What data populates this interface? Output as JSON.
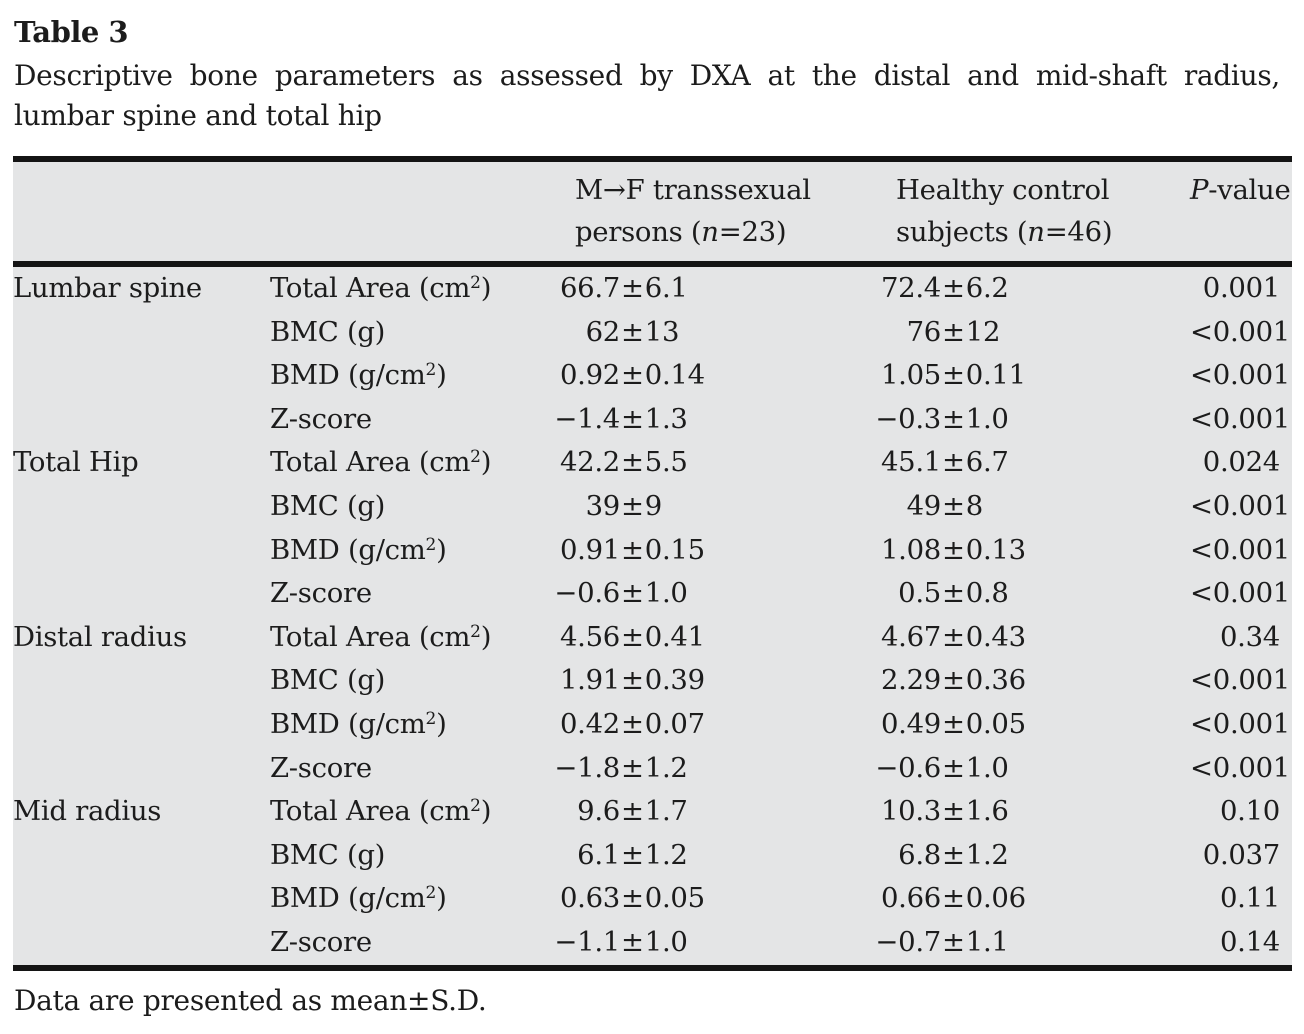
{
  "title": "Table 3",
  "caption": {
    "line1": "Descriptive bone parameters as assessed by DXA at the distal and mid-shaft radius,",
    "line2": "lumbar spine and total hip"
  },
  "footnote": "Data are presented as mean±S.D.",
  "colors": {
    "table_bg": "#e4e5e6",
    "rule": "#141414",
    "text": "#1c1c1c"
  },
  "table": {
    "header": {
      "mf": {
        "line1": "M→F transsexual",
        "line2_pre": "persons (",
        "line2_n": "n",
        "line2_post": "=23)"
      },
      "hc": {
        "line1": "Healthy control",
        "line2_pre": "subjects (",
        "line2_n": "n",
        "line2_post": "=46)"
      },
      "p": {
        "italic": "P",
        "rest": "-value"
      }
    },
    "rows": [
      {
        "region": "Lumbar spine",
        "param": {
          "base": "Total Area (cm",
          "sup": "2",
          "tail": ")"
        },
        "mf": "66.7±6.1",
        "hc": "72.4±6.2",
        "p": "0.001"
      },
      {
        "region": "",
        "param": {
          "base": "BMC (g)"
        },
        "mf": "62±13",
        "hc": "76±12",
        "p": "<0.001"
      },
      {
        "region": "",
        "param": {
          "base": "BMD (g/cm",
          "sup": "2",
          "tail": ")"
        },
        "mf": "0.92±0.14",
        "hc": "1.05±0.11",
        "p": "<0.001"
      },
      {
        "region": "",
        "param": {
          "base": "Z-score"
        },
        "mf": "−1.4±1.3",
        "hc": "−0.3±1.0",
        "p": "<0.001"
      },
      {
        "region": "Total Hip",
        "param": {
          "base": "Total Area (cm",
          "sup": "2",
          "tail": ")"
        },
        "mf": "42.2±5.5",
        "hc": "45.1±6.7",
        "p": "0.024"
      },
      {
        "region": "",
        "param": {
          "base": "BMC (g)"
        },
        "mf": "39±9",
        "hc": "49±8",
        "p": "<0.001"
      },
      {
        "region": "",
        "param": {
          "base": "BMD (g/cm",
          "sup": "2",
          "tail": ")"
        },
        "mf": "0.91±0.15",
        "hc": "1.08±0.13",
        "p": "<0.001"
      },
      {
        "region": "",
        "param": {
          "base": "Z-score"
        },
        "mf": "−0.6±1.0",
        "hc": "0.5±0.8",
        "p": "<0.001"
      },
      {
        "region": "Distal radius",
        "param": {
          "base": "Total Area (cm",
          "sup": "2",
          "tail": ")"
        },
        "mf": "4.56±0.41",
        "hc": "4.67±0.43",
        "p": "0.34"
      },
      {
        "region": "",
        "param": {
          "base": "BMC (g)"
        },
        "mf": "1.91±0.39",
        "hc": "2.29±0.36",
        "p": "<0.001"
      },
      {
        "region": "",
        "param": {
          "base": "BMD (g/cm",
          "sup": "2",
          "tail": ")"
        },
        "mf": "0.42±0.07",
        "hc": "0.49±0.05",
        "p": "<0.001"
      },
      {
        "region": "",
        "param": {
          "base": "Z-score"
        },
        "mf": "−1.8±1.2",
        "hc": "−0.6±1.0",
        "p": "<0.001"
      },
      {
        "region": "Mid radius",
        "param": {
          "base": "Total Area (cm",
          "sup": "2",
          "tail": ")"
        },
        "mf": "9.6±1.7",
        "hc": "10.3±1.6",
        "p": "0.10"
      },
      {
        "region": "",
        "param": {
          "base": "BMC (g)"
        },
        "mf": "6.1±1.2",
        "hc": "6.8±1.2",
        "p": "0.037"
      },
      {
        "region": "",
        "param": {
          "base": "BMD (g/cm",
          "sup": "2",
          "tail": ")"
        },
        "mf": "0.63±0.05",
        "hc": "0.66±0.06",
        "p": "0.11"
      },
      {
        "region": "",
        "param": {
          "base": "Z-score"
        },
        "mf": "−1.1±1.0",
        "hc": "−0.7±1.1",
        "p": "0.14"
      }
    ]
  }
}
